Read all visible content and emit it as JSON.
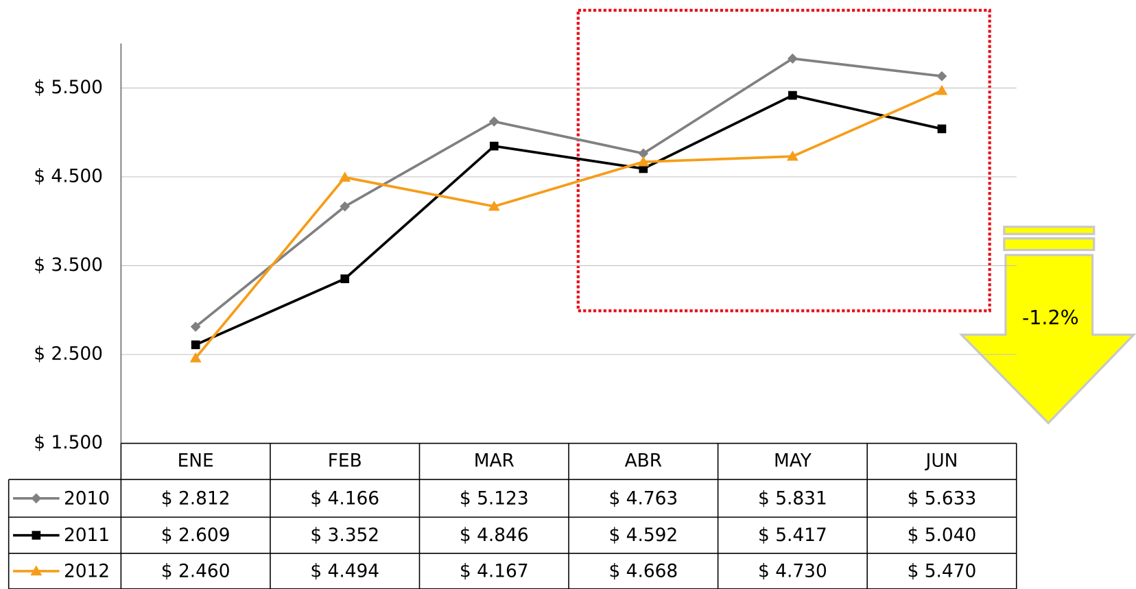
{
  "chart_data": {
    "type": "line",
    "categories": [
      "ENE",
      "FEB",
      "MAR",
      "ABR",
      "MAY",
      "JUN"
    ],
    "series": [
      {
        "name": "2010",
        "color": "#808080",
        "marker": "diamond",
        "values": [
          2812,
          4166,
          5123,
          4763,
          5831,
          5633
        ],
        "value_labels": [
          "$ 2.812",
          "$ 4.166",
          "$ 5.123",
          "$ 4.763",
          "$ 5.831",
          "$ 5.633"
        ]
      },
      {
        "name": "2011",
        "color": "#000000",
        "marker": "square",
        "values": [
          2609,
          3352,
          4846,
          4592,
          5417,
          5040
        ],
        "value_labels": [
          "$ 2.609",
          "$ 3.352",
          "$ 4.846",
          "$ 4.592",
          "$ 5.417",
          "$ 5.040"
        ]
      },
      {
        "name": "2012",
        "color": "#f59d18",
        "marker": "triangle",
        "values": [
          2460,
          4494,
          4167,
          4668,
          4730,
          5470
        ],
        "value_labels": [
          "$ 2.460",
          "$ 4.494",
          "$ 4.167",
          "$ 4.668",
          "$ 4.730",
          "$ 5.470"
        ]
      }
    ],
    "ylim": [
      1500,
      6000
    ],
    "yticks": [
      {
        "value": 1500,
        "label": "$ 1.500"
      },
      {
        "value": 2500,
        "label": "$ 2.500"
      },
      {
        "value": 3500,
        "label": "$ 3.500"
      },
      {
        "value": 4500,
        "label": "$ 4.500"
      },
      {
        "value": 5500,
        "label": "$ 5.500"
      }
    ],
    "grid": true,
    "annotation": "-1.2%"
  }
}
